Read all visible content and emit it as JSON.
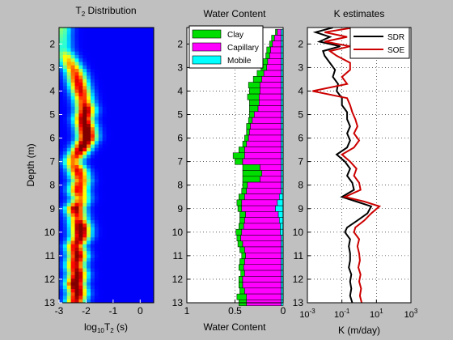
{
  "chart_data": [
    {
      "type": "heatmap",
      "title_main": "T",
      "title_sub": "2",
      "title_tail": " Distribution",
      "xlabel_main": "log",
      "xlabel_sub": "10",
      "xlabel_mid": "T",
      "xlabel_sub2": "2",
      "xlabel_tail": " (s)",
      "ylabel": "Depth (m)",
      "xlim": [
        -3,
        0.5
      ],
      "ylim": [
        1.3,
        13
      ],
      "xticks": [
        "-3",
        "-2",
        "-1",
        "0"
      ],
      "yticks": [
        "2",
        "3",
        "4",
        "5",
        "6",
        "7",
        "8",
        "9",
        "10",
        "11",
        "12",
        "13"
      ],
      "peak": {
        "depth": [
          1.3,
          1.7,
          2.2,
          2.5,
          2.8,
          3.2,
          3.6,
          4.0,
          4.4,
          4.8,
          5.2,
          5.6,
          6.0,
          6.5,
          7.0,
          7.4,
          7.8,
          8.2,
          8.6,
          9.0,
          9.4,
          9.8,
          10.2,
          10.6,
          11.0,
          11.4,
          11.8,
          12.2,
          12.6,
          13.0
        ],
        "log10_t2": [
          -2.9,
          -2.9,
          -2.85,
          -2.75,
          -2.6,
          -2.4,
          -2.3,
          -2.2,
          -2.1,
          -2.0,
          -2.1,
          -2.0,
          -1.95,
          -2.2,
          -2.5,
          -2.3,
          -2.2,
          -2.3,
          -2.2,
          -2.4,
          -2.3,
          -2.2,
          -2.2,
          -2.4,
          -2.3,
          -2.4,
          -2.3,
          -2.4,
          -2.3,
          -2.4
        ],
        "amplitude": [
          0.4,
          0.35,
          0.3,
          0.5,
          0.6,
          0.7,
          0.8,
          0.8,
          0.7,
          0.9,
          0.9,
          1.0,
          1.0,
          0.9,
          0.6,
          0.8,
          0.7,
          0.8,
          0.6,
          0.9,
          0.7,
          1.0,
          0.9,
          0.8,
          0.9,
          0.8,
          0.9,
          1.0,
          0.9,
          0.8
        ]
      }
    },
    {
      "type": "bar",
      "orientation": "horizontal-stacked",
      "title": "Water Content",
      "xlabel": "Water Content",
      "xlim": [
        1,
        0
      ],
      "ylim": [
        1.3,
        13
      ],
      "xticks": [
        "1",
        "0.5",
        "0"
      ],
      "yticks": [
        "2",
        "3",
        "4",
        "5",
        "6",
        "7",
        "8",
        "9",
        "10",
        "11",
        "12",
        "13"
      ],
      "legend_position": "top-left",
      "series_meta": [
        {
          "name": "Clay",
          "color": "#00dd00"
        },
        {
          "name": "Capillary",
          "color": "#ff00ff"
        },
        {
          "name": "Mobile",
          "color": "#00ffff"
        }
      ],
      "depth": [
        1.5,
        1.75,
        2.0,
        2.25,
        2.5,
        2.75,
        3.0,
        3.25,
        3.5,
        3.75,
        4.0,
        4.25,
        4.5,
        4.75,
        5.0,
        5.25,
        5.5,
        5.75,
        6.0,
        6.25,
        6.5,
        6.75,
        7.0,
        7.25,
        7.5,
        7.75,
        8.0,
        8.25,
        8.5,
        8.75,
        9.0,
        9.25,
        9.5,
        9.75,
        10.0,
        10.25,
        10.5,
        10.75,
        11.0,
        11.25,
        11.5,
        11.75,
        12.0,
        12.25,
        12.5,
        12.75,
        13.0
      ],
      "clay": [
        0.02,
        0.03,
        0.03,
        0.04,
        0.04,
        0.05,
        0.06,
        0.07,
        0.09,
        0.12,
        0.11,
        0.12,
        0.1,
        0.09,
        0.05,
        0.04,
        0.04,
        0.03,
        0.04,
        0.04,
        0.06,
        0.12,
        0.08,
        0.18,
        0.2,
        0.18,
        0.05,
        0.05,
        0.06,
        0.05,
        0.04,
        0.06,
        0.05,
        0.05,
        0.06,
        0.04,
        0.05,
        0.05,
        0.04,
        0.05,
        0.05,
        0.04,
        0.04,
        0.04,
        0.05,
        0.1,
        0.08
      ],
      "capillary": [
        0.04,
        0.07,
        0.09,
        0.11,
        0.12,
        0.14,
        0.15,
        0.18,
        0.2,
        0.22,
        0.22,
        0.23,
        0.23,
        0.24,
        0.28,
        0.3,
        0.32,
        0.33,
        0.34,
        0.36,
        0.38,
        0.38,
        0.4,
        0.22,
        0.2,
        0.22,
        0.35,
        0.36,
        0.36,
        0.37,
        0.35,
        0.34,
        0.36,
        0.38,
        0.4,
        0.42,
        0.4,
        0.38,
        0.37,
        0.38,
        0.39,
        0.38,
        0.4,
        0.4,
        0.38,
        0.36,
        0.36
      ],
      "mobile": [
        0.02,
        0.02,
        0.02,
        0.02,
        0.02,
        0.02,
        0.02,
        0.02,
        0.02,
        0.02,
        0.02,
        0.02,
        0.02,
        0.02,
        0.02,
        0.02,
        0.02,
        0.02,
        0.02,
        0.02,
        0.02,
        0.02,
        0.02,
        0.02,
        0.02,
        0.02,
        0.02,
        0.02,
        0.04,
        0.06,
        0.08,
        0.05,
        0.04,
        0.03,
        0.03,
        0.02,
        0.02,
        0.02,
        0.02,
        0.02,
        0.02,
        0.02,
        0.02,
        0.02,
        0.02,
        0.02,
        0.02
      ]
    },
    {
      "type": "line",
      "title": "K estimates",
      "xlabel": "K (m/day)",
      "xscale": "log",
      "xlim": [
        0.001,
        1000
      ],
      "ylim": [
        1.3,
        13
      ],
      "xticks": [
        {
          "base": "10",
          "exp": "-3"
        },
        {
          "base": "10",
          "exp": "-1"
        },
        {
          "base": "10",
          "exp": "1"
        },
        {
          "base": "10",
          "exp": "3"
        }
      ],
      "yticks": [
        "2",
        "3",
        "4",
        "5",
        "6",
        "7",
        "8",
        "9",
        "10",
        "11",
        "12",
        "13"
      ],
      "legend_position": "top-right",
      "series": [
        {
          "name": "SDR",
          "color": "#000000",
          "depth": [
            1.3,
            1.5,
            1.7,
            1.9,
            2.1,
            2.3,
            2.5,
            2.8,
            3.1,
            3.4,
            3.7,
            4.0,
            4.3,
            4.6,
            4.9,
            5.2,
            5.5,
            5.8,
            6.1,
            6.4,
            6.7,
            7.0,
            7.3,
            7.6,
            7.9,
            8.2,
            8.5,
            8.7,
            8.9,
            9.2,
            9.5,
            9.8,
            10.0,
            10.3,
            10.6,
            10.9,
            11.2,
            11.5,
            11.8,
            12.1,
            12.4,
            12.7,
            13.0
          ],
          "k": [
            0.03,
            0.003,
            0.02,
            0.005,
            0.08,
            0.008,
            0.01,
            0.02,
            0.04,
            0.03,
            0.06,
            0.05,
            0.1,
            0.1,
            0.2,
            0.2,
            0.3,
            0.2,
            0.3,
            0.2,
            0.05,
            0.15,
            0.3,
            0.2,
            0.4,
            0.5,
            0.1,
            0.7,
            5,
            3,
            0.8,
            0.2,
            0.15,
            0.3,
            0.25,
            0.3,
            0.3,
            0.25,
            0.35,
            0.3,
            0.35,
            0.3,
            0.4
          ]
        },
        {
          "name": "SOE",
          "color": "#cc0000",
          "depth": [
            1.3,
            1.5,
            1.7,
            1.9,
            2.1,
            2.3,
            2.5,
            2.8,
            3.1,
            3.4,
            3.7,
            4.0,
            4.3,
            4.6,
            4.9,
            5.2,
            5.5,
            5.8,
            6.1,
            6.4,
            6.7,
            7.0,
            7.3,
            7.6,
            7.9,
            8.2,
            8.5,
            8.7,
            8.9,
            9.2,
            9.5,
            9.8,
            10.0,
            10.3,
            10.6,
            10.9,
            11.2,
            11.5,
            11.8,
            12.1,
            12.4,
            12.7,
            13.0
          ],
          "k": [
            0.5,
            0.01,
            0.2,
            0.01,
            0.3,
            0.02,
            0.05,
            0.3,
            0.3,
            0.1,
            0.2,
            0.002,
            0.2,
            0.3,
            0.4,
            0.6,
            0.8,
            0.5,
            1.0,
            0.5,
            0.1,
            0.3,
            0.7,
            0.5,
            1.0,
            1.2,
            0.15,
            2,
            15,
            5,
            2,
            0.6,
            0.5,
            1.0,
            0.8,
            1.0,
            1.1,
            0.9,
            1.2,
            1.0,
            1.3,
            1.1,
            1.4
          ]
        }
      ]
    }
  ]
}
